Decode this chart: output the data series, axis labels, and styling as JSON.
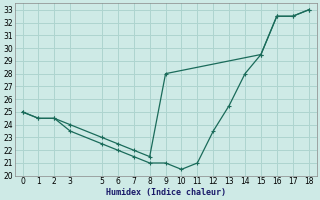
{
  "xlabel": "Humidex (Indice chaleur)",
  "xlim": [
    -0.5,
    18.5
  ],
  "ylim": [
    20,
    33.5
  ],
  "xticks": [
    0,
    1,
    2,
    3,
    5,
    6,
    7,
    8,
    9,
    10,
    11,
    12,
    13,
    14,
    15,
    16,
    17,
    18
  ],
  "yticks": [
    20,
    21,
    22,
    23,
    24,
    25,
    26,
    27,
    28,
    29,
    30,
    31,
    32,
    33
  ],
  "bg_color": "#ceeae6",
  "grid_color": "#aed4cf",
  "line_color": "#1a6b5a",
  "line1_x": [
    0,
    1,
    2,
    3,
    5,
    6,
    7,
    8,
    9,
    10,
    11,
    12,
    13,
    14,
    15,
    16,
    17,
    18
  ],
  "line1_y": [
    25,
    24.5,
    24.5,
    23.5,
    22.5,
    22,
    21.5,
    21,
    21,
    20.5,
    21,
    23.5,
    25.5,
    28,
    29.5,
    32.5,
    32.5,
    33
  ],
  "line2_x": [
    0,
    1,
    2,
    3,
    5,
    6,
    7,
    8,
    9,
    15,
    16,
    17,
    18
  ],
  "line2_y": [
    25,
    24.5,
    24.5,
    24,
    23,
    22.5,
    22,
    21.5,
    28,
    29.5,
    32.5,
    32.5,
    33
  ]
}
